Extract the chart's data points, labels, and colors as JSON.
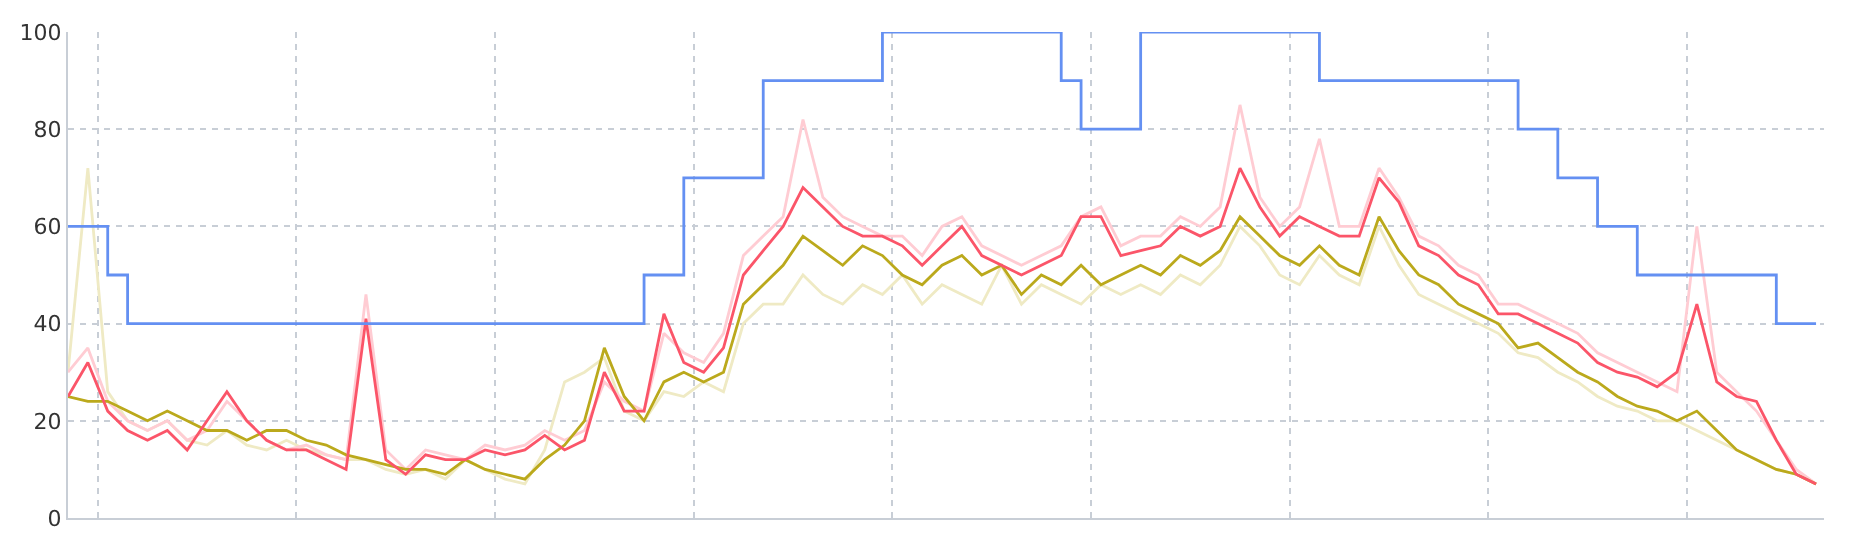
{
  "chart_data": {
    "type": "line",
    "categories": [
      null,
      null,
      null,
      null,
      null,
      null,
      null,
      null,
      null,
      null,
      null,
      null,
      null,
      null,
      null,
      null,
      null,
      null,
      null,
      null,
      null,
      null,
      null,
      null,
      null,
      null,
      null,
      null,
      null,
      null,
      null,
      null,
      null,
      null,
      null,
      null,
      null,
      null,
      null,
      null,
      null,
      null,
      null,
      null,
      null,
      null,
      null,
      null,
      null,
      null,
      null,
      null,
      null,
      null,
      null,
      null,
      null,
      null,
      null,
      null,
      null,
      null,
      null,
      null,
      null,
      null,
      null,
      null,
      null,
      null,
      null,
      null,
      null,
      null,
      null,
      null,
      null,
      null,
      null,
      null,
      null,
      null,
      null,
      null,
      null,
      null,
      null,
      null,
      null
    ],
    "series": [
      {
        "color": "#efeac4",
        "values": [
          30,
          72,
          26,
          20,
          18,
          20,
          16,
          15,
          18,
          15,
          14,
          16,
          14,
          13,
          12,
          12,
          10,
          9,
          10,
          8,
          12,
          10,
          8,
          7,
          14,
          28,
          30,
          33,
          22,
          20,
          26,
          25,
          28,
          26,
          40,
          44,
          44,
          50,
          46,
          44,
          48,
          46,
          50,
          44,
          48,
          46,
          44,
          52,
          44,
          48,
          46,
          44,
          48,
          46,
          48,
          46,
          50,
          48,
          52,
          60,
          56,
          50,
          48,
          54,
          50,
          48,
          60,
          52,
          46,
          44,
          42,
          40,
          38,
          34,
          33,
          30,
          28,
          25,
          23,
          22,
          20,
          20,
          18,
          16,
          14,
          12,
          10,
          9,
          7
        ]
      },
      {
        "color": "#ffccd3",
        "values": [
          30,
          35,
          24,
          20,
          18,
          20,
          16,
          18,
          24,
          20,
          16,
          14,
          15,
          13,
          12,
          46,
          14,
          10,
          14,
          13,
          12,
          15,
          14,
          15,
          18,
          16,
          18,
          28,
          24,
          22,
          38,
          34,
          32,
          38,
          54,
          58,
          62,
          82,
          66,
          62,
          60,
          58,
          58,
          54,
          60,
          62,
          56,
          54,
          52,
          54,
          56,
          62,
          64,
          56,
          58,
          58,
          62,
          60,
          64,
          85,
          66,
          60,
          64,
          78,
          60,
          60,
          72,
          66,
          58,
          56,
          52,
          50,
          44,
          44,
          42,
          40,
          38,
          34,
          32,
          30,
          28,
          26,
          60,
          30,
          26,
          22,
          16,
          10,
          7
        ]
      },
      {
        "color": "#bba91c",
        "values": [
          25,
          24,
          24,
          22,
          20,
          22,
          20,
          18,
          18,
          16,
          18,
          18,
          16,
          15,
          13,
          12,
          11,
          10,
          10,
          9,
          12,
          10,
          9,
          8,
          12,
          15,
          20,
          35,
          25,
          20,
          28,
          30,
          28,
          30,
          44,
          48,
          52,
          58,
          55,
          52,
          56,
          54,
          50,
          48,
          52,
          54,
          50,
          52,
          46,
          50,
          48,
          52,
          48,
          50,
          52,
          50,
          54,
          52,
          55,
          62,
          58,
          54,
          52,
          56,
          52,
          50,
          62,
          55,
          50,
          48,
          44,
          42,
          40,
          35,
          36,
          33,
          30,
          28,
          25,
          23,
          22,
          20,
          22,
          18,
          14,
          12,
          10,
          9,
          7
        ]
      },
      {
        "color": "#fb5569",
        "values": [
          25,
          32,
          22,
          18,
          16,
          18,
          14,
          20,
          26,
          20,
          16,
          14,
          14,
          12,
          10,
          41,
          12,
          9,
          13,
          12,
          12,
          14,
          13,
          14,
          17,
          14,
          16,
          30,
          22,
          22,
          42,
          32,
          30,
          35,
          50,
          55,
          60,
          68,
          64,
          60,
          58,
          58,
          56,
          52,
          56,
          60,
          54,
          52,
          50,
          52,
          54,
          62,
          62,
          54,
          55,
          56,
          60,
          58,
          60,
          72,
          64,
          58,
          62,
          60,
          58,
          58,
          70,
          65,
          56,
          54,
          50,
          48,
          42,
          42,
          40,
          38,
          36,
          32,
          30,
          29,
          27,
          30,
          44,
          28,
          25,
          24,
          16,
          9,
          7
        ]
      },
      {
        "type": "step",
        "color": "#6490f2",
        "values": [
          60,
          60,
          50,
          40,
          40,
          40,
          40,
          40,
          40,
          40,
          40,
          40,
          40,
          40,
          40,
          40,
          40,
          40,
          40,
          40,
          40,
          40,
          40,
          40,
          40,
          40,
          40,
          40,
          40,
          50,
          50,
          70,
          70,
          70,
          70,
          90,
          90,
          90,
          90,
          90,
          90,
          100,
          100,
          100,
          100,
          100,
          100,
          100,
          100,
          100,
          90,
          80,
          80,
          80,
          100,
          100,
          100,
          100,
          100,
          100,
          100,
          100,
          100,
          90,
          90,
          90,
          90,
          90,
          90,
          90,
          90,
          90,
          90,
          80,
          80,
          70,
          70,
          60,
          60,
          50,
          50,
          50,
          50,
          50,
          50,
          50,
          40,
          40,
          40
        ]
      }
    ],
    "ylim": [
      0,
      100
    ],
    "yticks": [
      0,
      20,
      40,
      60,
      80,
      100
    ],
    "grid": true,
    "tick_labels": "y",
    "marker": "none",
    "line_style": "solid"
  }
}
